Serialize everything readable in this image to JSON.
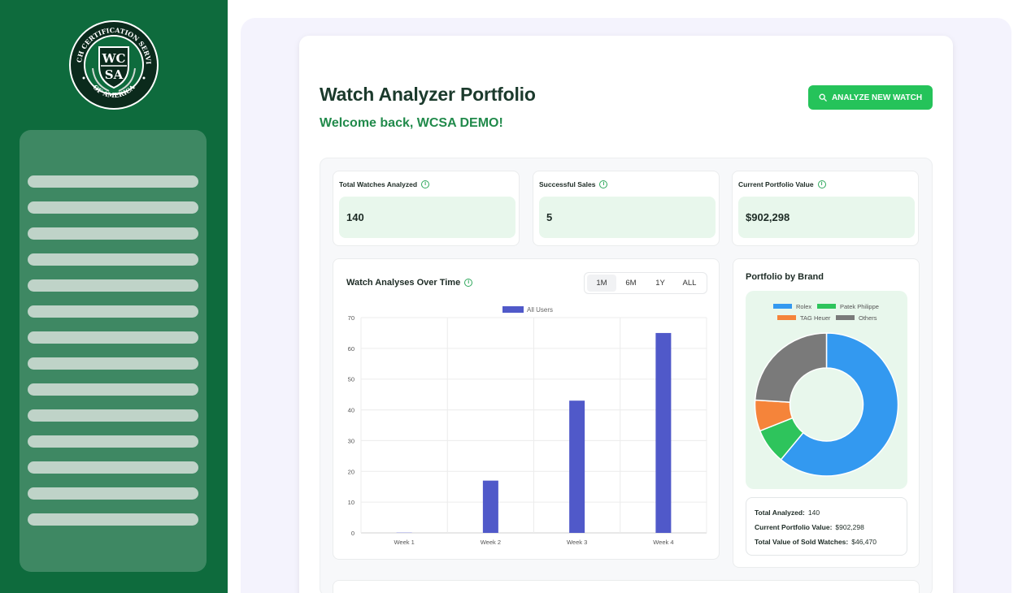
{
  "logo": {
    "arc_top": "WATCH CERTIFICATION SERVICES",
    "arc_bottom": "OF AMERICA",
    "mark_top": "WC",
    "mark_bottom": "SA"
  },
  "sidebar": {
    "item_count": 14
  },
  "header": {
    "title": "Watch Analyzer Portfolio",
    "welcome": "Welcome back, WCSA DEMO!",
    "analyze_button": "ANALYZE NEW WATCH"
  },
  "stats": [
    {
      "label": "Total Watches Analyzed",
      "value": "140"
    },
    {
      "label": "Successful Sales",
      "value": "5"
    },
    {
      "label": "Current Portfolio Value",
      "value": "$902,298"
    }
  ],
  "analyses_chart": {
    "title": "Watch Analyses Over Time",
    "ranges": [
      "1M",
      "6M",
      "1Y",
      "ALL"
    ],
    "active_range": "1M"
  },
  "brand_chart": {
    "title": "Portfolio by Brand"
  },
  "summary": {
    "total_analyzed_label": "Total Analyzed:",
    "total_analyzed_value": "140",
    "portfolio_value_label": "Current Portfolio Value:",
    "portfolio_value_value": "$902,298",
    "sold_value_label": "Total Value of Sold Watches:",
    "sold_value_value": "$46,470"
  },
  "colors": {
    "sidebar": "#0e6b3d",
    "accent_green": "#25c35a",
    "bar": "#5059c9",
    "rolex": "#3399f0",
    "patek": "#2ec45c",
    "tag": "#f5843a",
    "others": "#7a7a7a"
  },
  "chart_data": [
    {
      "type": "bar",
      "title": "Watch Analyses Over Time",
      "categories": [
        "Week 1",
        "Week 2",
        "Week 3",
        "Week 4"
      ],
      "series": [
        {
          "name": "All Users",
          "values": [
            0,
            17,
            43,
            65
          ]
        }
      ],
      "ylim": [
        0,
        70
      ],
      "yticks": [
        0,
        10,
        20,
        30,
        40,
        50,
        60,
        70
      ],
      "grid": true,
      "legend": "top-center"
    },
    {
      "type": "pie",
      "title": "Portfolio by Brand",
      "labels": [
        "Rolex",
        "Patek Philippe",
        "TAG Heuer",
        "Others"
      ],
      "values": [
        61,
        8,
        7,
        24
      ],
      "legend": "top-center",
      "donut": true
    }
  ]
}
